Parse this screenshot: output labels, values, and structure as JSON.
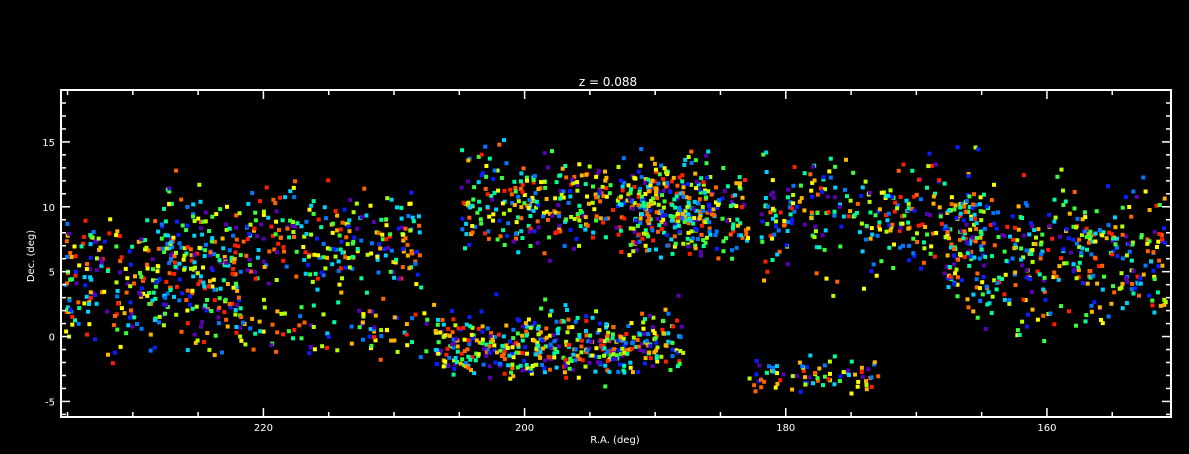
{
  "chart_data": {
    "type": "scatter",
    "title": "z = 0.088",
    "xlabel": "R.A. (deg)",
    "ylabel": "Dec. (deg)",
    "xlim": [
      235.5,
      150.5
    ],
    "ylim": [
      -6.2,
      19
    ],
    "x_reversed": true,
    "grid": false,
    "x_ticks": [
      220,
      200,
      180,
      160
    ],
    "x_tick_labels": [
      "220",
      "200",
      "180",
      "160"
    ],
    "y_ticks": [
      -5,
      0,
      5,
      10,
      15
    ],
    "y_tick_labels": [
      "-5",
      "0",
      "5",
      "10",
      "15"
    ],
    "marker": "square",
    "color_scheme": "rainbow (purple-blue-cyan-green-yellow-orange-red) by redshift",
    "colors": [
      "#5a00b4",
      "#0a1eff",
      "#0078ff",
      "#00d2ff",
      "#00ff9a",
      "#3cff3c",
      "#b4ff00",
      "#ffff00",
      "#ffb400",
      "#ff6400",
      "#ff1e00"
    ],
    "background": "#000000",
    "foreground": "#ffffff",
    "density_regions": [
      {
        "ra": [
          235.5,
          222
        ],
        "dec": [
          -3,
          11
        ],
        "weight": 0.12
      },
      {
        "ra": [
          228,
          208
        ],
        "dec": [
          2,
          13.5
        ],
        "weight": 0.12
      },
      {
        "ra": [
          207,
          188
        ],
        "dec": [
          -4,
          2
        ],
        "weight": 0.13
      },
      {
        "ra": [
          205,
          186
        ],
        "dec": [
          5,
          16
        ],
        "weight": 0.16
      },
      {
        "ra": [
          192,
          183
        ],
        "dec": [
          4,
          15
        ],
        "weight": 0.08
      },
      {
        "ra": [
          183,
          173
        ],
        "dec": [
          -4.5,
          -1
        ],
        "weight": 0.03
      },
      {
        "ra": [
          182,
          165
        ],
        "dec": [
          3,
          16
        ],
        "weight": 0.12
      },
      {
        "ra": [
          168,
          151
        ],
        "dec": [
          -1,
          14
        ],
        "weight": 0.16
      },
      {
        "ra": [
          222,
          188
        ],
        "dec": [
          -3,
          4
        ],
        "weight": 0.08
      }
    ],
    "n_points": 2600
  }
}
